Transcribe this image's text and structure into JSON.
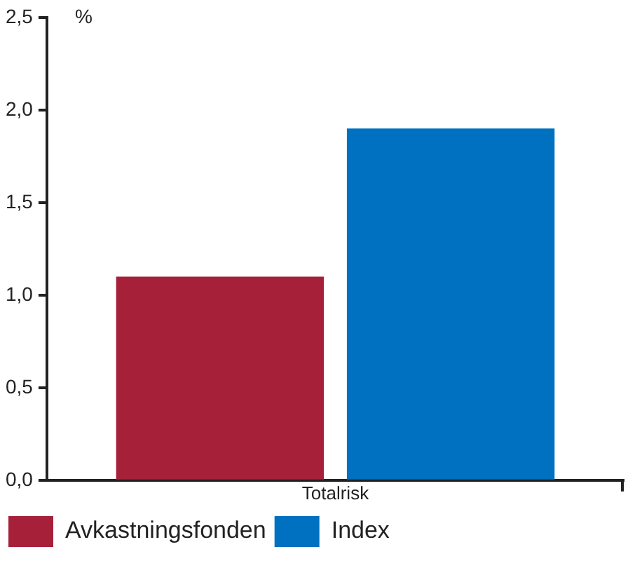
{
  "chart_data": {
    "type": "bar",
    "ylabel": "%",
    "categories": [
      "Totalrisk"
    ],
    "series": [
      {
        "name": "Avkastningsfonden",
        "color": "#a6203a",
        "values": [
          1.1
        ]
      },
      {
        "name": "Index",
        "color": "#0070c0",
        "values": [
          1.9
        ]
      }
    ],
    "ylim": [
      0,
      2.5
    ],
    "yticks": [
      {
        "value": 0,
        "label": "0,0"
      },
      {
        "value": 0.5,
        "label": "0,5"
      },
      {
        "value": 1,
        "label": "1,0"
      },
      {
        "value": 1.5,
        "label": "1,5"
      },
      {
        "value": 2,
        "label": "2,0"
      },
      {
        "value": 2.5,
        "label": "2,5"
      }
    ],
    "grid": false,
    "legend": "bottom"
  }
}
